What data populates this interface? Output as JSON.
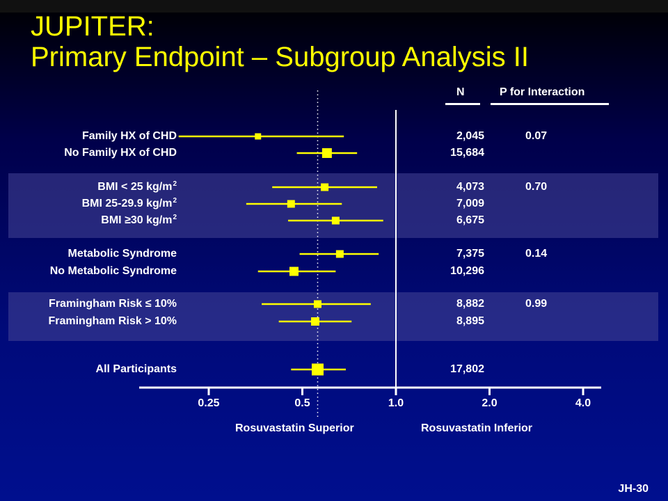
{
  "slide": {
    "title_line1": "JUPITER:",
    "title_line2": "Primary Endpoint – Subgroup Analysis II",
    "footer_code": "JH-30",
    "colors": {
      "background": "#000f8e",
      "title": "#ffff00",
      "marker": "#ffff00",
      "band": "#464696"
    }
  },
  "chart_data": {
    "type": "forest",
    "x_scale": "log2",
    "xlim": [
      0.2,
      4.15
    ],
    "x_ticks": [
      0.25,
      0.5,
      1.0,
      2.0,
      4.0
    ],
    "x_tick_labels": [
      "0.25",
      "0.5",
      "1.0",
      "2.0",
      "4.0"
    ],
    "reference_line": 1.0,
    "left_direction_label": "Rosuvastatin Superior",
    "right_direction_label": "Rosuvastatin Inferior",
    "column_headers": {
      "n": "N",
      "p": "P for Interaction"
    },
    "rows": [
      {
        "label": "Family HX of CHD",
        "n": "2,045",
        "p": "0.07",
        "hr": 0.36,
        "lo": 0.2,
        "hi": 0.68,
        "group": 0
      },
      {
        "label": "No Family HX of CHD",
        "n": "15,684",
        "p": "",
        "hr": 0.6,
        "lo": 0.48,
        "hi": 0.75,
        "group": 0
      },
      {
        "label": "BMI < 25 kg/m",
        "sup": "2",
        "n": "4,073",
        "p": "0.70",
        "hr": 0.59,
        "lo": 0.4,
        "hi": 0.87,
        "group": 1
      },
      {
        "label": "BMI 25-29.9 kg/m",
        "sup": "2",
        "n": "7,009",
        "p": "",
        "hr": 0.46,
        "lo": 0.33,
        "hi": 0.67,
        "group": 1
      },
      {
        "label": "BMI ≥30 kg/m",
        "sup": "2",
        "n": "6,675",
        "p": "",
        "hr": 0.64,
        "lo": 0.45,
        "hi": 0.91,
        "group": 1
      },
      {
        "label": "Metabolic Syndrome",
        "n": "7,375",
        "p": "0.14",
        "hr": 0.66,
        "lo": 0.49,
        "hi": 0.88,
        "group": 2
      },
      {
        "label": "No Metabolic Syndrome",
        "n": "10,296",
        "p": "",
        "hr": 0.47,
        "lo": 0.36,
        "hi": 0.64,
        "group": 2
      },
      {
        "label": "Framingham Risk ≤ 10%",
        "n": "8,882",
        "p": "0.99",
        "hr": 0.56,
        "lo": 0.37,
        "hi": 0.83,
        "group": 3
      },
      {
        "label": "Framingham Risk > 10%",
        "n": "8,895",
        "p": "",
        "hr": 0.55,
        "lo": 0.42,
        "hi": 0.72,
        "group": 3
      },
      {
        "label": "All Participants",
        "n": "17,802",
        "p": "",
        "hr": 0.56,
        "lo": 0.46,
        "hi": 0.69,
        "group": 4
      }
    ]
  }
}
